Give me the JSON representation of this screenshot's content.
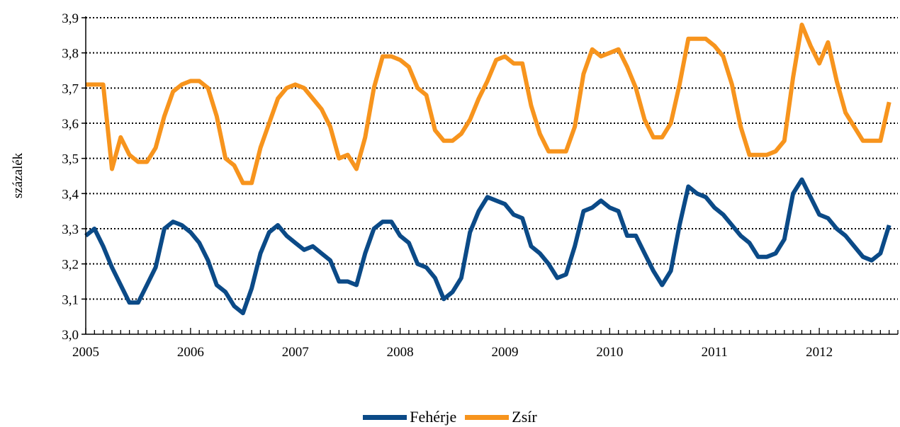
{
  "chart_data": {
    "type": "line",
    "title": "",
    "xlabel": "",
    "ylabel": "százalék",
    "ylim": [
      3.0,
      3.9
    ],
    "yticks": [
      "3,0",
      "3,1",
      "3,2",
      "3,3",
      "3,4",
      "3,5",
      "3,6",
      "3,7",
      "3,8",
      "3,9"
    ],
    "xlim": [
      2005.0,
      2012.75
    ],
    "xticks": [
      "2005",
      "2006",
      "2007",
      "2008",
      "2009",
      "2010",
      "2011",
      "2012"
    ],
    "grid": "horizontal dotted",
    "legend_position": "bottom-center",
    "start_month": "2005-01",
    "series": [
      {
        "name": "Fehérje",
        "color": "#0b4a87",
        "values": [
          3.28,
          3.3,
          3.25,
          3.19,
          3.14,
          3.09,
          3.09,
          3.14,
          3.19,
          3.3,
          3.32,
          3.31,
          3.29,
          3.26,
          3.21,
          3.14,
          3.12,
          3.08,
          3.06,
          3.13,
          3.23,
          3.29,
          3.31,
          3.28,
          3.26,
          3.24,
          3.25,
          3.23,
          3.21,
          3.15,
          3.15,
          3.14,
          3.23,
          3.3,
          3.32,
          3.32,
          3.28,
          3.26,
          3.2,
          3.19,
          3.16,
          3.1,
          3.12,
          3.16,
          3.29,
          3.35,
          3.39,
          3.38,
          3.37,
          3.34,
          3.33,
          3.25,
          3.23,
          3.2,
          3.16,
          3.17,
          3.25,
          3.35,
          3.36,
          3.38,
          3.36,
          3.35,
          3.28,
          3.28,
          3.23,
          3.18,
          3.14,
          3.18,
          3.31,
          3.42,
          3.4,
          3.39,
          3.36,
          3.34,
          3.31,
          3.28,
          3.26,
          3.22,
          3.22,
          3.23,
          3.27,
          3.4,
          3.44,
          3.39,
          3.34,
          3.33,
          3.3,
          3.28,
          3.25,
          3.22,
          3.21,
          3.23,
          3.31
        ]
      },
      {
        "name": "Zsír",
        "color": "#f7941d",
        "values": [
          3.71,
          3.71,
          3.71,
          3.47,
          3.56,
          3.51,
          3.49,
          3.49,
          3.53,
          3.62,
          3.69,
          3.71,
          3.72,
          3.72,
          3.7,
          3.62,
          3.5,
          3.48,
          3.43,
          3.43,
          3.53,
          3.6,
          3.67,
          3.7,
          3.71,
          3.7,
          3.67,
          3.64,
          3.59,
          3.5,
          3.51,
          3.47,
          3.56,
          3.7,
          3.79,
          3.79,
          3.78,
          3.76,
          3.7,
          3.68,
          3.58,
          3.55,
          3.55,
          3.57,
          3.61,
          3.67,
          3.72,
          3.78,
          3.79,
          3.77,
          3.77,
          3.65,
          3.57,
          3.52,
          3.52,
          3.52,
          3.59,
          3.74,
          3.81,
          3.79,
          3.8,
          3.81,
          3.76,
          3.7,
          3.61,
          3.56,
          3.56,
          3.6,
          3.71,
          3.84,
          3.84,
          3.84,
          3.82,
          3.79,
          3.71,
          3.59,
          3.51,
          3.51,
          3.51,
          3.52,
          3.55,
          3.73,
          3.88,
          3.82,
          3.77,
          3.83,
          3.72,
          3.63,
          3.59,
          3.55,
          3.55,
          3.55,
          3.66
        ]
      }
    ]
  }
}
